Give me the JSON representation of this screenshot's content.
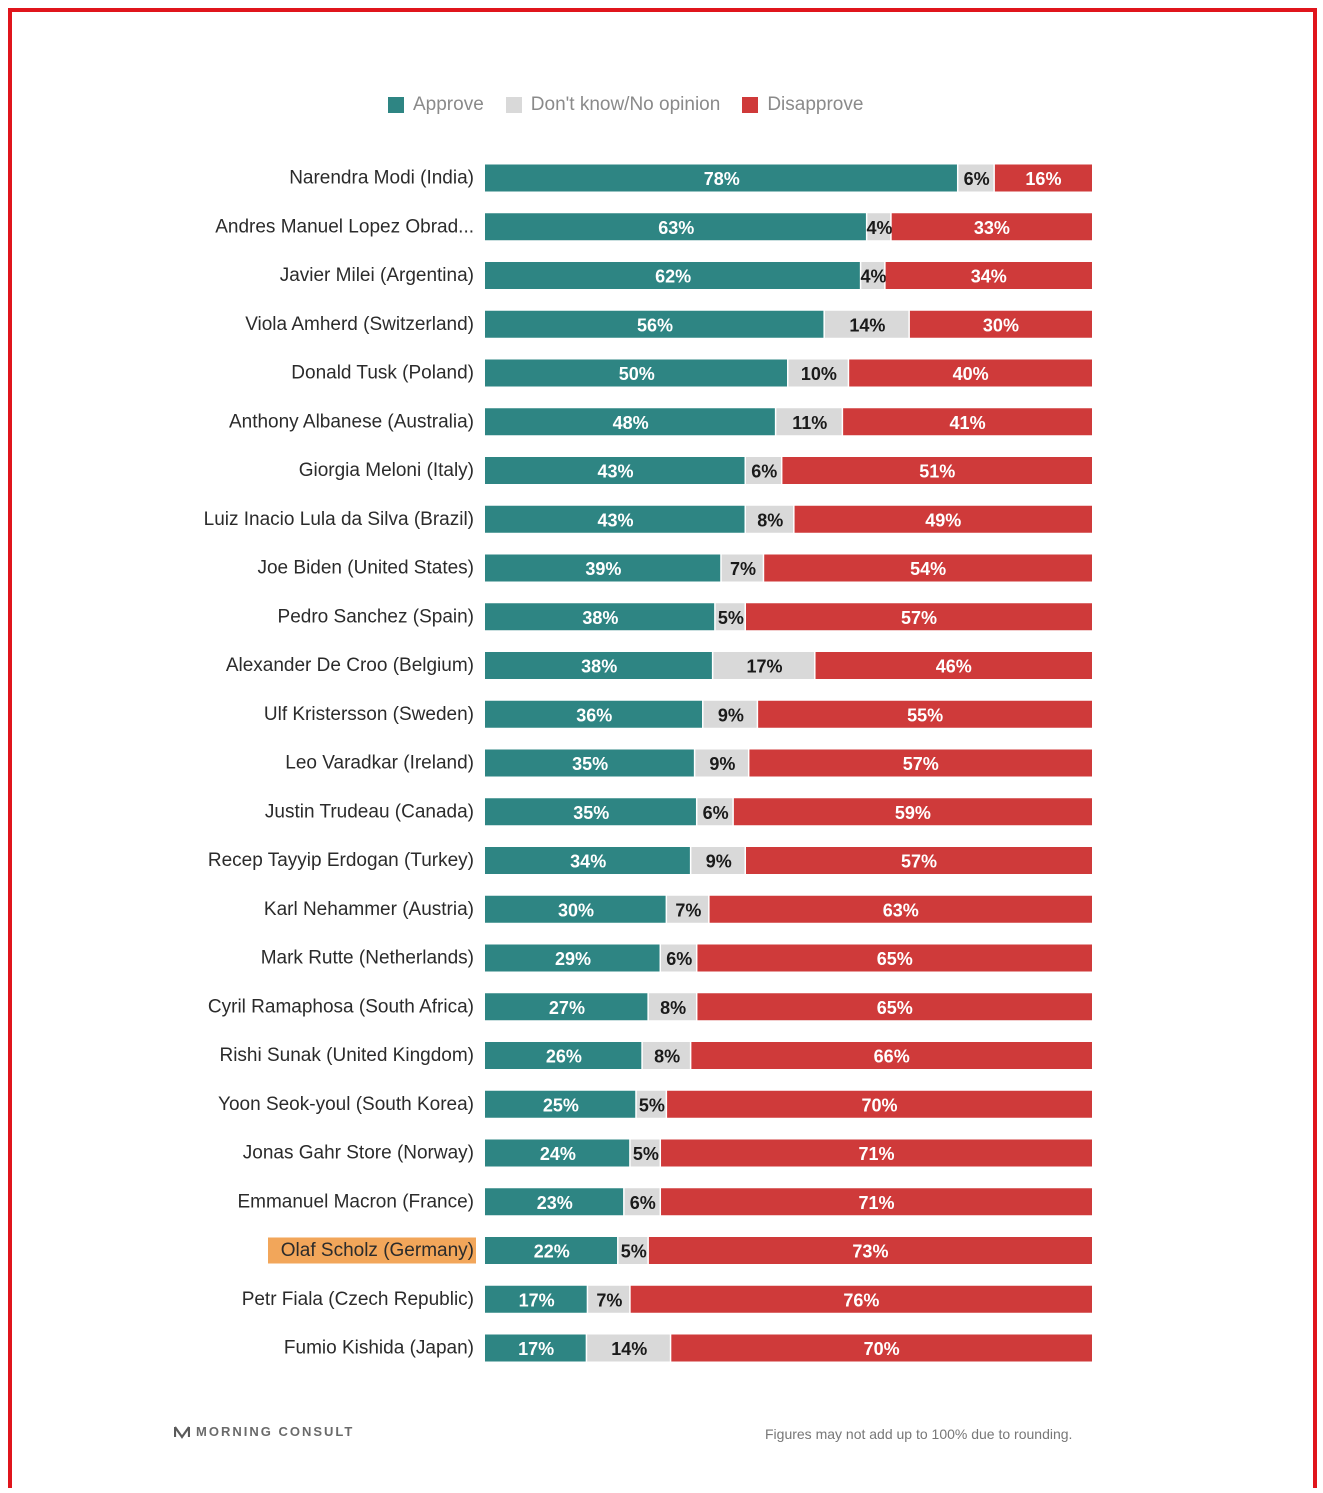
{
  "colors": {
    "approve": "#2e8583",
    "neutral": "#d9d9d9",
    "disapprove": "#cf3a3a",
    "highlight": "#f2a65a",
    "frame": "#e0151c"
  },
  "legend": {
    "approve": "Approve",
    "neutral": "Don't know/No opinion",
    "disapprove": "Disapprove"
  },
  "chart_data": {
    "type": "bar",
    "orientation": "horizontal",
    "stacked": true,
    "legend_position": "top",
    "grid": false,
    "categories": [
      "Narendra Modi (India)",
      "Andres Manuel Lopez Obrad...",
      "Javier Milei (Argentina)",
      "Viola Amherd (Switzerland)",
      "Donald Tusk (Poland)",
      "Anthony Albanese (Australia)",
      "Giorgia Meloni (Italy)",
      "Luiz Inacio Lula da Silva (Brazil)",
      "Joe Biden (United States)",
      "Pedro Sanchez (Spain)",
      "Alexander De Croo (Belgium)",
      "Ulf Kristersson (Sweden)",
      "Leo Varadkar (Ireland)",
      "Justin Trudeau (Canada)",
      "Recep Tayyip Erdogan (Turkey)",
      "Karl Nehammer (Austria)",
      "Mark Rutte (Netherlands)",
      "Cyril Ramaphosa (South Africa)",
      "Rishi Sunak (United Kingdom)",
      "Yoon Seok-youl (South Korea)",
      "Jonas Gahr Store (Norway)",
      "Emmanuel Macron (France)",
      "Olaf Scholz (Germany)",
      "Petr Fiala (Czech Republic)",
      "Fumio Kishida (Japan)"
    ],
    "highlighted_category": "Olaf Scholz (Germany)",
    "series": [
      {
        "name": "Approve",
        "values": [
          78,
          63,
          62,
          56,
          50,
          48,
          43,
          43,
          39,
          38,
          38,
          36,
          35,
          35,
          34,
          30,
          29,
          27,
          26,
          25,
          24,
          23,
          22,
          17,
          17
        ]
      },
      {
        "name": "Don't know/No opinion",
        "values": [
          6,
          4,
          4,
          14,
          10,
          11,
          6,
          8,
          7,
          5,
          17,
          9,
          9,
          6,
          9,
          7,
          6,
          8,
          8,
          5,
          5,
          6,
          5,
          7,
          14
        ]
      },
      {
        "name": "Disapprove",
        "values": [
          16,
          33,
          34,
          30,
          40,
          41,
          51,
          49,
          54,
          57,
          46,
          55,
          57,
          59,
          57,
          63,
          65,
          65,
          66,
          70,
          71,
          71,
          73,
          76,
          70
        ]
      }
    ],
    "value_suffix": "%"
  },
  "footer": {
    "brand": "MORNING CONSULT",
    "note": "Figures may not add up to 100% due to rounding."
  }
}
